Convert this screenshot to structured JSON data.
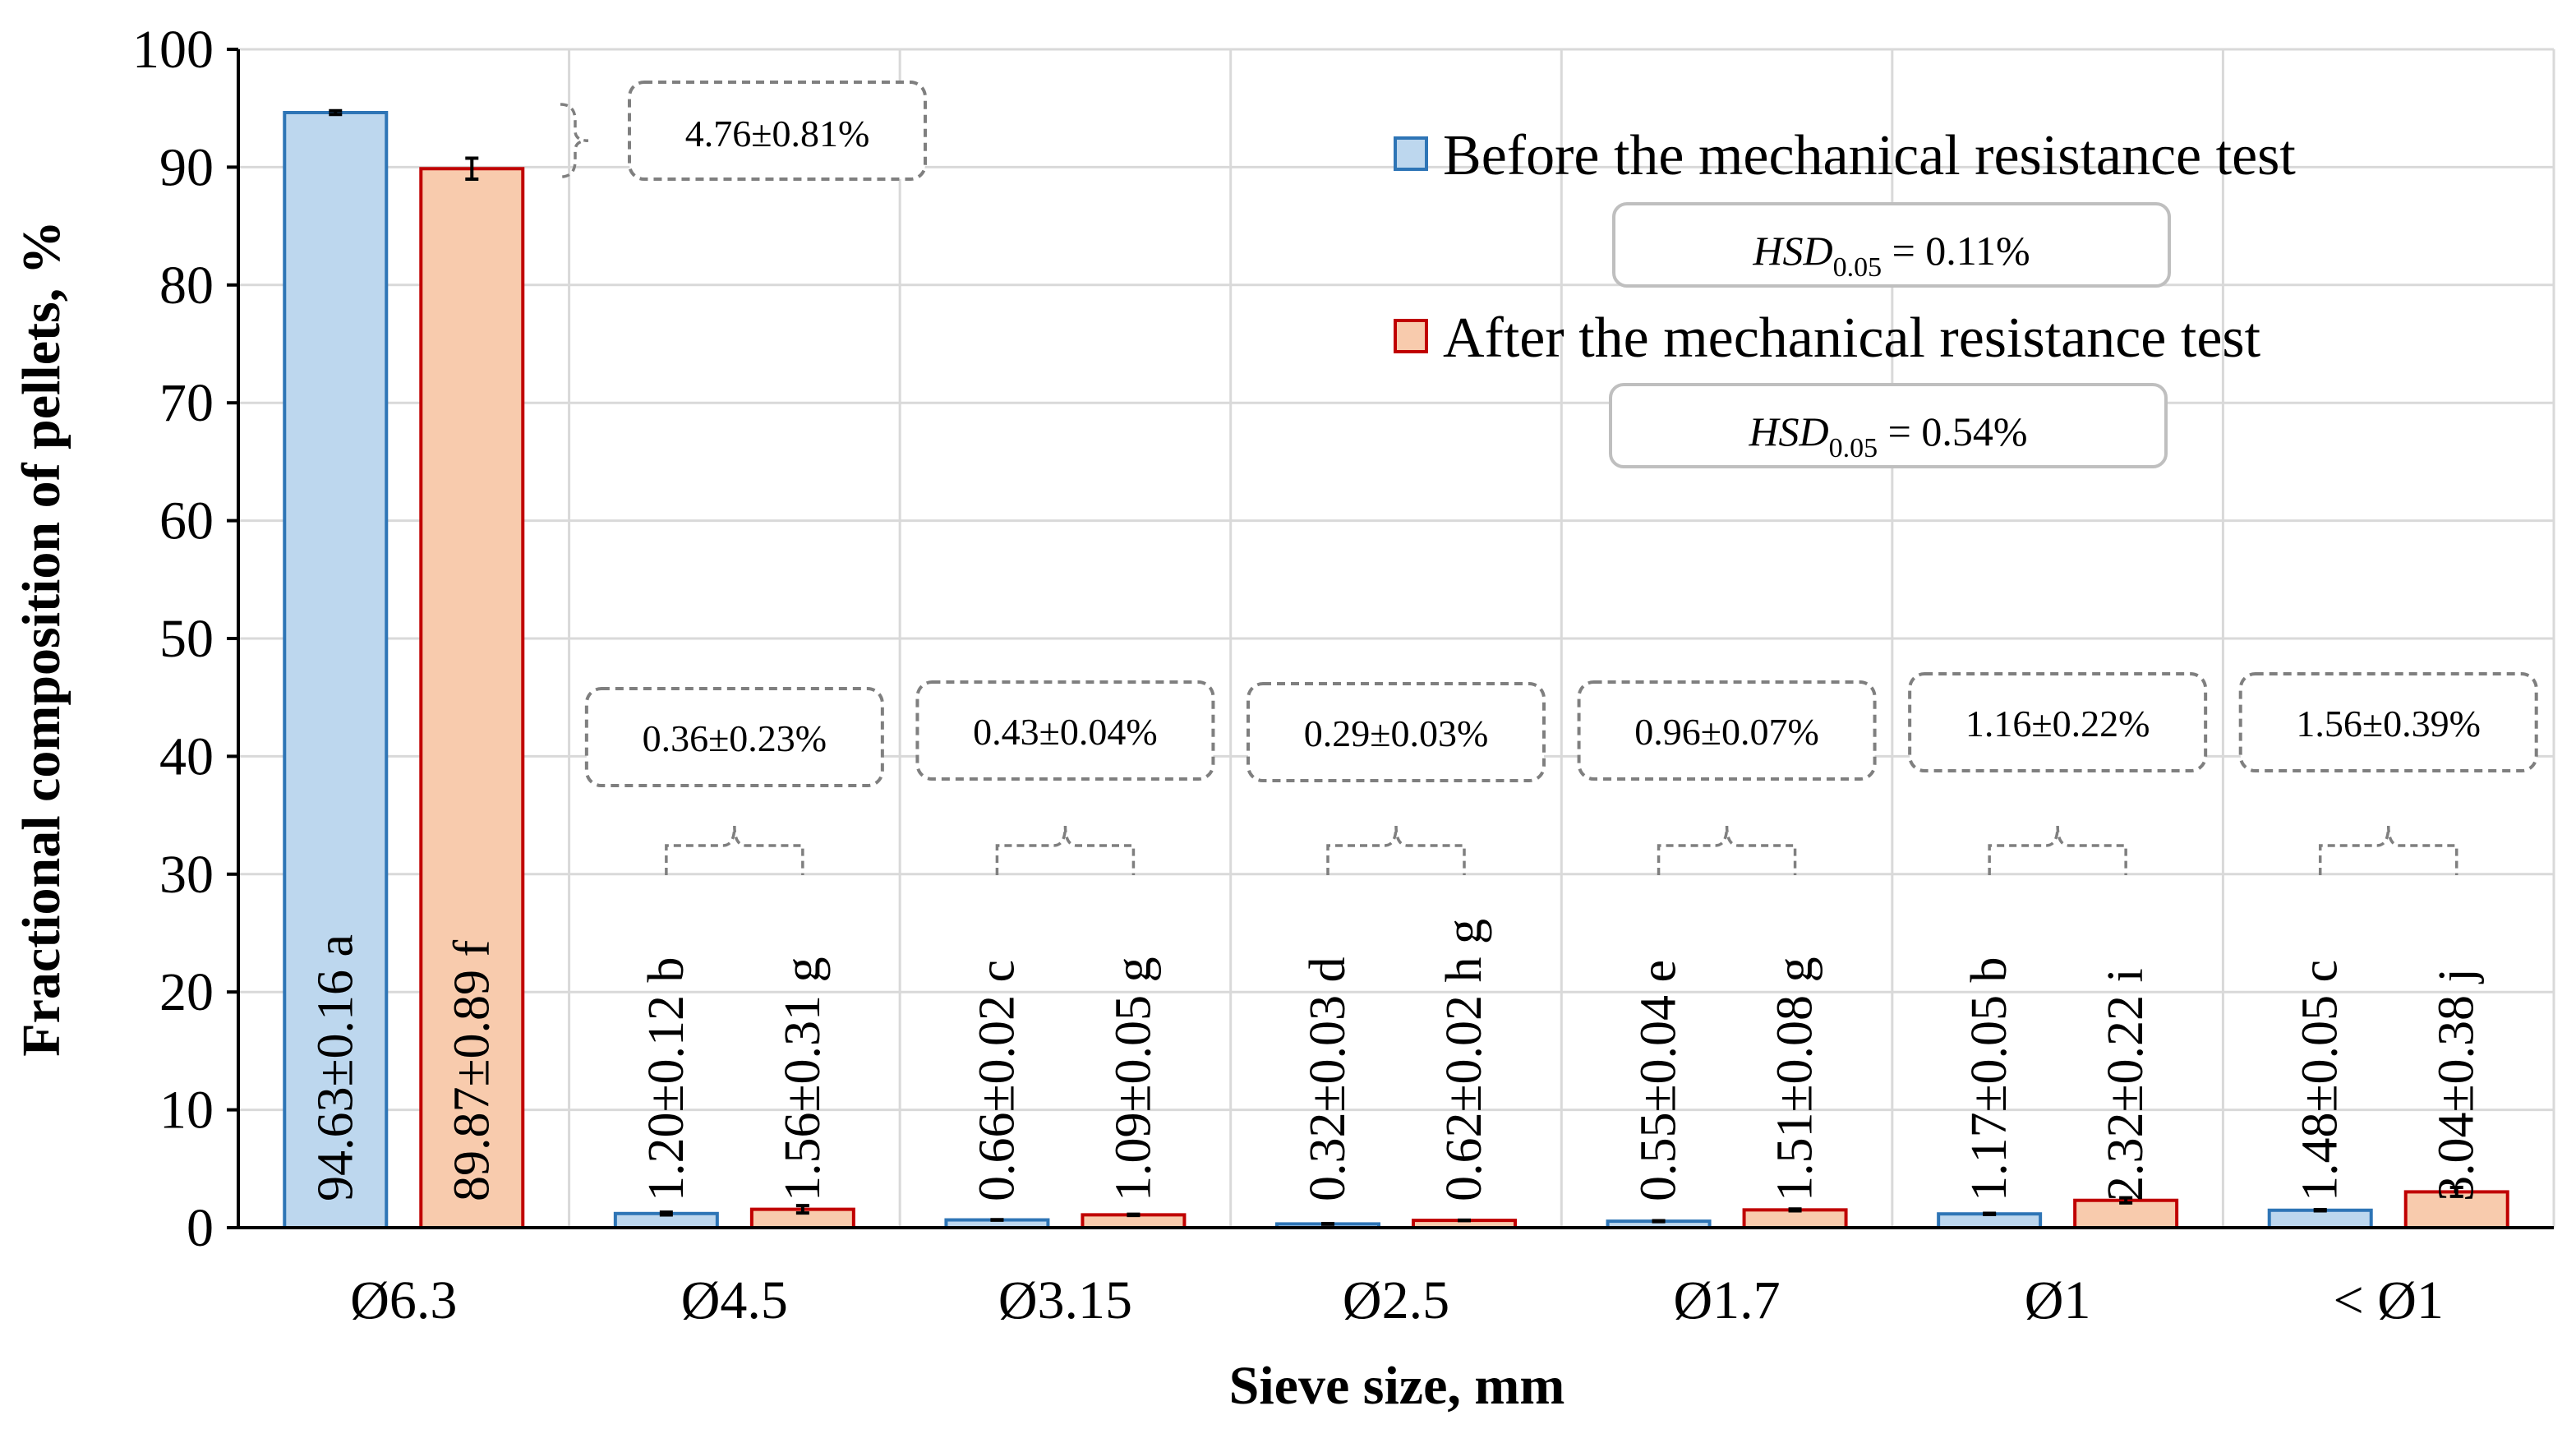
{
  "chart_data": {
    "type": "bar",
    "xlabel": "Sieve size, mm",
    "ylabel": "Fractional composition of pellets, %",
    "ylim": [
      0,
      100
    ],
    "yticks": [
      "0",
      "10",
      "20",
      "30",
      "40",
      "50",
      "60",
      "70",
      "80",
      "90",
      "100"
    ],
    "categories": [
      "Ø6.3",
      "Ø4.5",
      "Ø3.15",
      "Ø2.5",
      "Ø1.7",
      "Ø1",
      "< Ø1"
    ],
    "series": [
      {
        "name": "Before the mechanical resistance test",
        "color": "#bdd7ee",
        "edge": "#2e75b6",
        "values": [
          94.63,
          1.2,
          0.66,
          0.32,
          0.55,
          1.17,
          1.48
        ],
        "errors": [
          0.16,
          0.12,
          0.02,
          0.03,
          0.04,
          0.05,
          0.05
        ],
        "labels": [
          "94.63±0.16 a",
          "1.20±0.12 b",
          "0.66±0.02 c",
          "0.32±0.03 d",
          "0.55±0.04 e",
          "1.17±0.05 b",
          "1.48±0.05 c"
        ]
      },
      {
        "name": "After the mechanical resistance test",
        "color": "#f8cbad",
        "edge": "#c00000",
        "values": [
          89.87,
          1.56,
          1.09,
          0.62,
          1.51,
          2.32,
          3.04
        ],
        "errors": [
          0.89,
          0.31,
          0.05,
          0.02,
          0.08,
          0.22,
          0.38
        ],
        "labels": [
          "89.87±0.89 f",
          "1.56±0.31 g",
          "1.09±0.05 g",
          "0.62±0.02 h g",
          "1.51±0.08 g",
          "2.32±0.22 i",
          "3.04±0.38 j"
        ]
      }
    ],
    "differences": [
      "4.76±0.81%",
      "0.36±0.23%",
      "0.43±0.04%",
      "0.29±0.03%",
      "0.96±0.07%",
      "1.16±0.22%",
      "1.56±0.39%"
    ],
    "hsd": [
      {
        "label": "HSD",
        "sub": "0.05",
        "value": " = 0.11%"
      },
      {
        "label": "HSD",
        "sub": "0.05",
        "value": " = 0.54%"
      }
    ],
    "legend_position": "top-right",
    "grid": true
  }
}
